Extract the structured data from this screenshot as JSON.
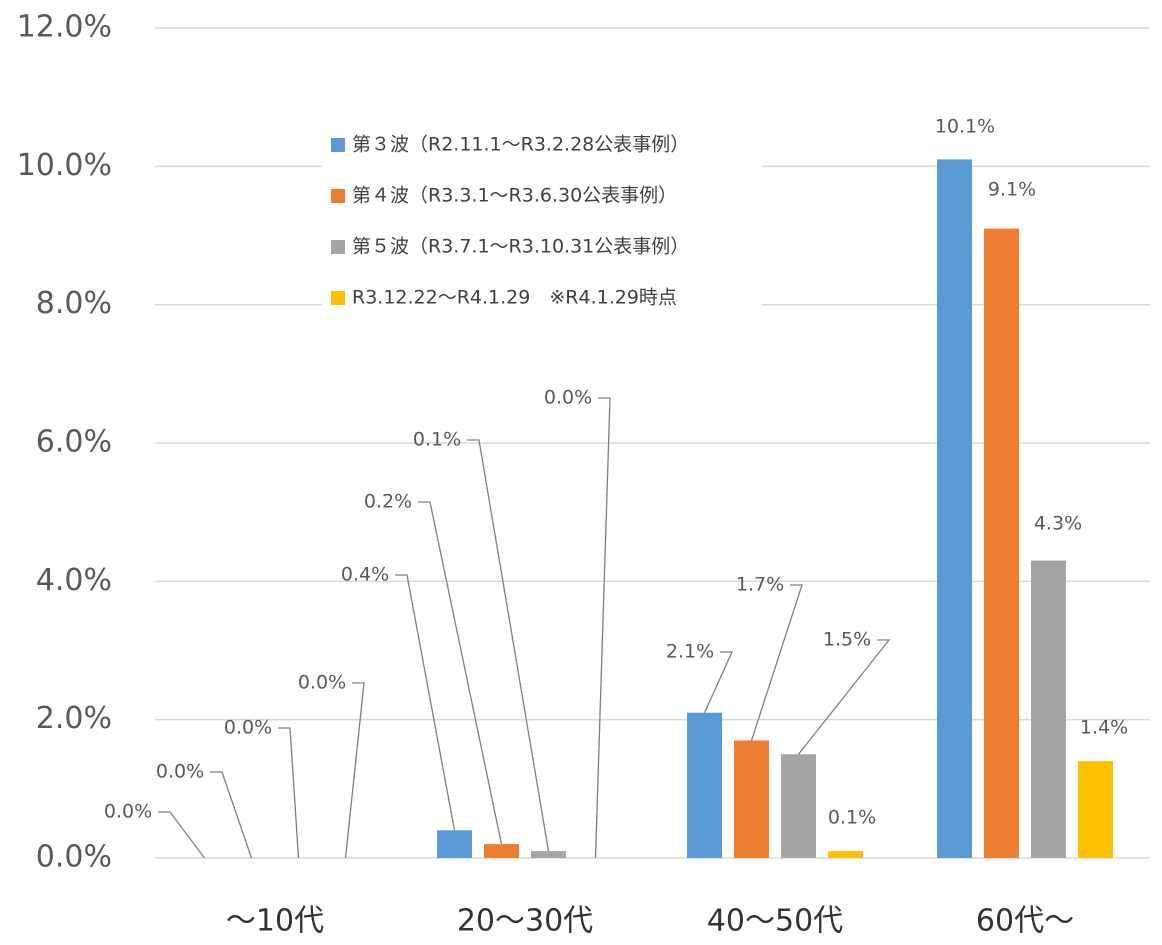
{
  "chart_data": {
    "type": "bar",
    "categories": [
      "〜10代",
      "20〜30代",
      "40〜50代",
      "60代〜"
    ],
    "series": [
      {
        "name": "第３波（R2.11.1〜R3.2.28公表事例）",
        "color": "#5b9bd5",
        "values": [
          0.0,
          0.4,
          2.1,
          10.1
        ],
        "value_labels": [
          "0.0%",
          "0.4%",
          "2.1%",
          "10.1%"
        ]
      },
      {
        "name": "第４波（R3.3.1〜R3.6.30公表事例）",
        "color": "#ed7d31",
        "values": [
          0.0,
          0.2,
          1.7,
          9.1
        ],
        "value_labels": [
          "0.0%",
          "0.2%",
          "1.7%",
          "9.1%"
        ]
      },
      {
        "name": "第５波（R3.7.1〜R3.10.31公表事例）",
        "color": "#a5a5a5",
        "values": [
          0.0,
          0.1,
          1.5,
          4.3
        ],
        "value_labels": [
          "0.0%",
          "0.1%",
          "1.5%",
          "4.3%"
        ]
      },
      {
        "name": "R3.12.22〜R4.1.29　※R4.1.29時点",
        "color": "#ffc000",
        "values": [
          0.0,
          0.0,
          0.1,
          1.4
        ],
        "value_labels": [
          "0.0%",
          "0.0%",
          "0.1%",
          "1.4%"
        ]
      }
    ],
    "ylim": [
      0,
      12
    ],
    "yticks": [
      {
        "value": 0,
        "label": "0.0%"
      },
      {
        "value": 2,
        "label": "2.0%"
      },
      {
        "value": 4,
        "label": "4.0%"
      },
      {
        "value": 6,
        "label": "6.0%"
      },
      {
        "value": 8,
        "label": "8.0%"
      },
      {
        "value": 10,
        "label": "10.0%"
      },
      {
        "value": 12,
        "label": "12.0%"
      }
    ],
    "grid": true
  }
}
